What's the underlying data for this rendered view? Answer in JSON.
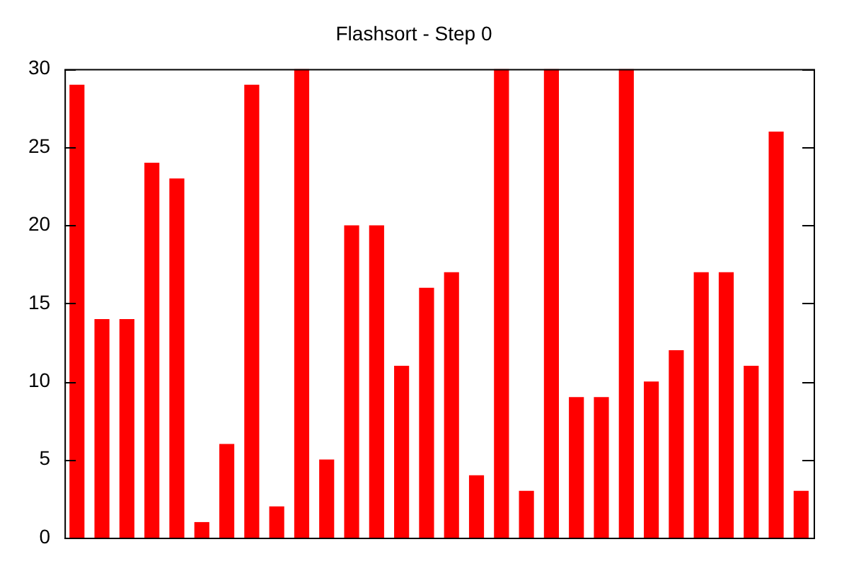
{
  "chart_data": {
    "type": "bar",
    "title": "Flashsort - Step 0",
    "categories": [
      null,
      null,
      null,
      null,
      null,
      null,
      null,
      null,
      null,
      null,
      null,
      null,
      null,
      null,
      null,
      null,
      null,
      null,
      null,
      null,
      null,
      null,
      null,
      null,
      null,
      null,
      null,
      null,
      null,
      null
    ],
    "values": [
      29,
      14,
      14,
      24,
      23,
      1,
      6,
      29,
      2,
      30,
      5,
      20,
      20,
      11,
      16,
      17,
      4,
      30,
      3,
      30,
      9,
      9,
      30,
      10,
      12,
      17,
      17,
      11,
      26,
      3
    ],
    "color": "#ff0000",
    "ylim": [
      0,
      30
    ],
    "yticks": [
      0,
      5,
      10,
      15,
      20,
      25,
      30
    ],
    "grid": false,
    "legend": false
  }
}
